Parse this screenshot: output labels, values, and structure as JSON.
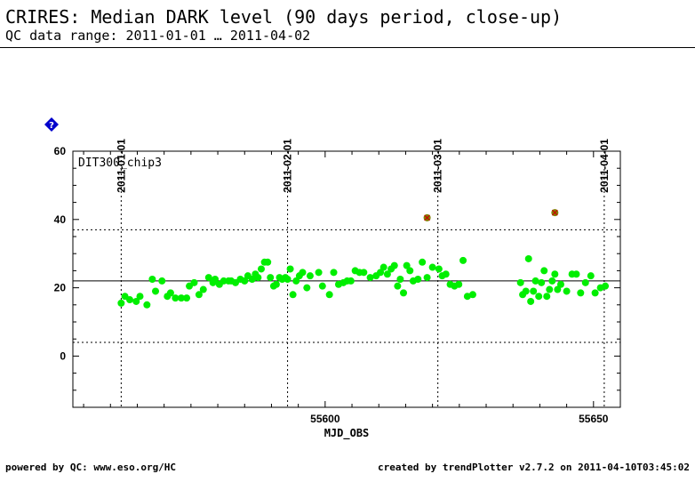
{
  "header": {
    "title": "CRIRES: Median DARK level (90 days period, close-up)",
    "subtitle": "QC data range: 2011-01-01 … 2011-04-02"
  },
  "footer": {
    "left": "powered by QC: www.eso.org/HC",
    "right": "created by trendPlotter v2.7.2 on 2011-04-10T03:45:02"
  },
  "icons": {
    "help": "help-diamond-icon"
  },
  "chart_data": {
    "type": "scatter",
    "panel_label": "DIT300_chip3",
    "xlabel": "MJD_OBS",
    "ylabel": "",
    "xlim": [
      55553,
      55655
    ],
    "ylim": [
      -15,
      60
    ],
    "x_ticks": [
      55600,
      55650
    ],
    "y_ticks": [
      0,
      20,
      40,
      60
    ],
    "date_markers": [
      {
        "label": "2011-01-01",
        "x": 55562
      },
      {
        "label": "2011-02-01",
        "x": 55593
      },
      {
        "label": "2011-03-01",
        "x": 55621
      },
      {
        "label": "2011-04-01",
        "x": 55652
      }
    ],
    "reference_lines": {
      "median": 22.0,
      "upper_limit": 37.0,
      "lower_limit": 4.0
    },
    "colors": {
      "points": "#00ee00",
      "outliers": "#808000",
      "outlier_mark": "#cc0000",
      "help_icon": "#0000cc"
    },
    "series": [
      {
        "x": [
          55562.0,
          55562.7,
          55563.6,
          55564.8,
          55565.5,
          55566.8,
          55567.8,
          55568.4,
          55569.6,
          55570.6,
          55571.2,
          55572.1,
          55573.2,
          55574.2,
          55574.7,
          55575.6,
          55576.5,
          55577.3,
          55578.3,
          55579.1,
          55579.5,
          55580.3,
          55581.1,
          55582.0,
          55582.5,
          55583.3,
          55584.2,
          55585.0,
          55585.6,
          55586.4,
          55587.0,
          55587.5,
          55588.1,
          55588.7,
          55589.3,
          55589.8,
          55590.4,
          55590.9,
          55591.5,
          55592.0,
          55592.6,
          55593.0,
          55593.5,
          55594.0,
          55594.6,
          55595.2,
          55595.8,
          55596.6,
          55597.2,
          55598.8,
          55599.5,
          55600.8,
          55601.6,
          55602.5,
          55603.4,
          55604.1,
          55604.8,
          55605.6,
          55606.4,
          55607.2,
          55608.4,
          55609.5,
          55610.3,
          55610.9,
          55611.6,
          55612.3,
          55612.9,
          55613.5,
          55614.0,
          55614.6,
          55615.2,
          55615.8,
          55616.4,
          55617.3,
          55618.1,
          55619.0,
          55620.0,
          55621.2,
          55621.8,
          55622.5,
          55623.3,
          55624.1,
          55624.9,
          55625.7,
          55626.5,
          55627.5,
          55636.4,
          55636.8,
          55637.4,
          55637.9,
          55638.3,
          55638.8,
          55639.2,
          55639.8,
          55640.3,
          55640.8,
          55641.3,
          55641.8,
          55642.3,
          55642.8,
          55643.3,
          55643.9,
          55645.0,
          55646.0,
          55646.8,
          55647.6,
          55648.5,
          55649.5,
          55650.3,
          55651.3,
          55652.2
        ],
        "y": [
          15.5,
          17.5,
          16.5,
          16.0,
          17.5,
          15.0,
          22.5,
          19.0,
          22.0,
          17.5,
          18.5,
          17.0,
          17.0,
          17.0,
          20.5,
          21.5,
          18.0,
          19.5,
          23.0,
          21.5,
          22.5,
          21.0,
          22.0,
          22.0,
          22.0,
          21.5,
          22.5,
          22.0,
          23.5,
          22.5,
          24.0,
          23.0,
          25.5,
          27.5,
          27.5,
          23.0,
          20.5,
          21.0,
          23.0,
          22.5,
          23.0,
          22.5,
          25.5,
          18.0,
          22.0,
          23.5,
          24.5,
          20.0,
          23.5,
          24.5,
          20.5,
          18.0,
          24.5,
          21.0,
          21.5,
          22.0,
          22.0,
          25.0,
          24.5,
          24.5,
          23.0,
          23.5,
          24.5,
          26.0,
          24.0,
          25.5,
          26.5,
          20.5,
          22.5,
          18.5,
          26.5,
          25.0,
          22.0,
          22.5,
          27.5,
          23.0,
          26.0,
          25.5,
          23.5,
          24.0,
          21.0,
          20.5,
          21.0,
          28.0,
          17.5,
          18.0,
          21.5,
          18.0,
          19.0,
          28.5,
          16.0,
          19.0,
          22.0,
          17.5,
          21.5,
          25.0,
          17.5,
          19.5,
          22.0,
          24.0,
          19.5,
          21.0,
          19.0,
          24.0,
          24.0,
          18.5,
          21.5,
          23.5,
          18.5,
          20.0,
          20.5
        ],
        "color": "#00ee00"
      },
      {
        "x": [
          55619.0,
          55642.8
        ],
        "y": [
          40.5,
          42.0
        ],
        "color": "#808000",
        "outlier": true
      }
    ]
  }
}
